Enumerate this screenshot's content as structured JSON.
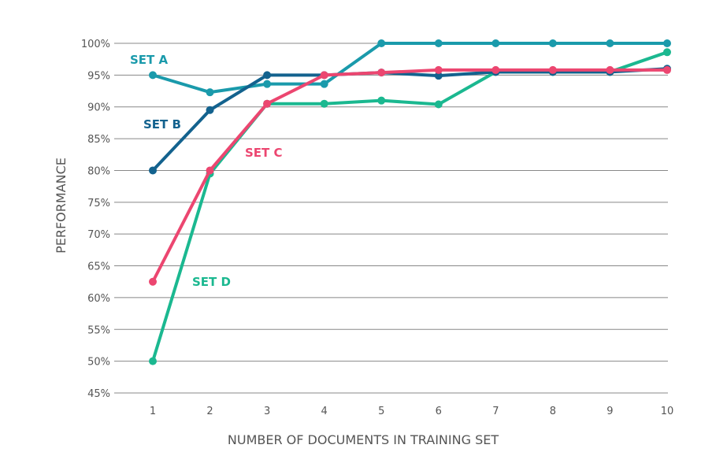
{
  "chart_data": {
    "type": "line",
    "title": "",
    "xlabel": "NUMBER OF DOCUMENTS IN TRAINING SET",
    "ylabel": "PERFORMANCE",
    "x": [
      1,
      2,
      3,
      4,
      5,
      6,
      7,
      8,
      9,
      10
    ],
    "ylim": [
      45,
      100
    ],
    "yticks": [
      45,
      50,
      55,
      60,
      65,
      70,
      75,
      80,
      85,
      90,
      95,
      100
    ],
    "ytick_labels": [
      "45%",
      "50%",
      "55%",
      "60%",
      "65%",
      "70%",
      "75%",
      "80%",
      "85%",
      "90%",
      "95%",
      "100%"
    ],
    "xtick_labels": [
      "1",
      "2",
      "3",
      "4",
      "5",
      "6",
      "7",
      "8",
      "9",
      "10"
    ],
    "grid": true,
    "series": [
      {
        "name": "SET A",
        "color": "#1a9aab",
        "values": [
          95,
          92.3,
          93.6,
          93.6,
          100,
          100,
          100,
          100,
          100,
          100
        ],
        "label_at": [
          1,
          97.5
        ]
      },
      {
        "name": "SET B",
        "color": "#13628e",
        "values": [
          80,
          89.5,
          95,
          95,
          95.4,
          94.9,
          95.5,
          95.5,
          95.5,
          96
        ]
      },
      {
        "name": "SET C",
        "color": "#ec4670",
        "values": [
          62.5,
          80,
          90.5,
          95,
          95.4,
          95.8,
          95.8,
          95.8,
          95.8,
          95.8
        ]
      },
      {
        "name": "SET D",
        "color": "#1bb890",
        "values": [
          50,
          79.5,
          90.5,
          90.5,
          91,
          90.4,
          95.5,
          95.5,
          95.5,
          98.6
        ]
      }
    ]
  }
}
